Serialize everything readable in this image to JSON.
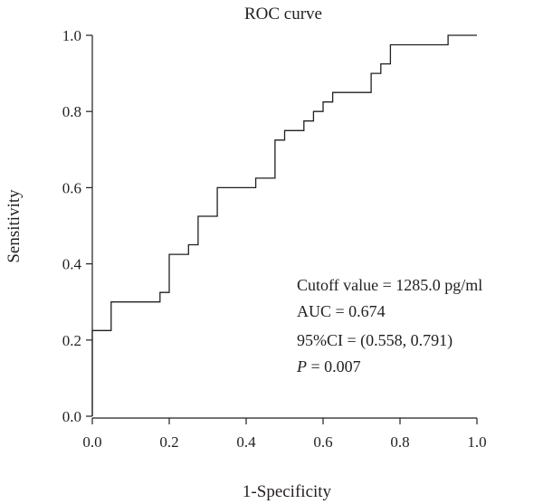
{
  "chart_data": {
    "type": "line",
    "title": "ROC curve",
    "xlabel": "1-Specificity",
    "ylabel": "Sensitivity",
    "xlim": [
      0,
      1
    ],
    "ylim": [
      0,
      1
    ],
    "xticks": [
      "0.0",
      "0.2",
      "0.4",
      "0.6",
      "0.8",
      "1.0"
    ],
    "yticks": [
      "0.0",
      "0.2",
      "0.4",
      "0.6",
      "0.8",
      "1.0"
    ],
    "grid": false,
    "series": [
      {
        "x": [
          0.0,
          0.0,
          0.049,
          0.049,
          0.176,
          0.176,
          0.2,
          0.2,
          0.25,
          0.25,
          0.275,
          0.275,
          0.325,
          0.325,
          0.425,
          0.425,
          0.475,
          0.475,
          0.5,
          0.5,
          0.55,
          0.55,
          0.575,
          0.575,
          0.6,
          0.6,
          0.625,
          0.625,
          0.725,
          0.725,
          0.75,
          0.75,
          0.775,
          0.775,
          0.925,
          0.925,
          1.0
        ],
        "y": [
          0.0,
          0.225,
          0.225,
          0.3,
          0.3,
          0.325,
          0.325,
          0.425,
          0.425,
          0.45,
          0.45,
          0.525,
          0.525,
          0.6,
          0.6,
          0.625,
          0.625,
          0.725,
          0.725,
          0.75,
          0.75,
          0.775,
          0.775,
          0.8,
          0.8,
          0.825,
          0.825,
          0.85,
          0.85,
          0.9,
          0.9,
          0.925,
          0.925,
          0.975,
          0.975,
          1.0,
          1.0
        ]
      }
    ],
    "annotations": [
      "Cutoff value = 1285.0 pg/ml",
      "AUC = 0.674",
      "95%CI = (0.558, 0.791)",
      "P = 0.007"
    ]
  },
  "annotation_parts": {
    "p_symbol": "P",
    "p_value": " = 0.007"
  }
}
